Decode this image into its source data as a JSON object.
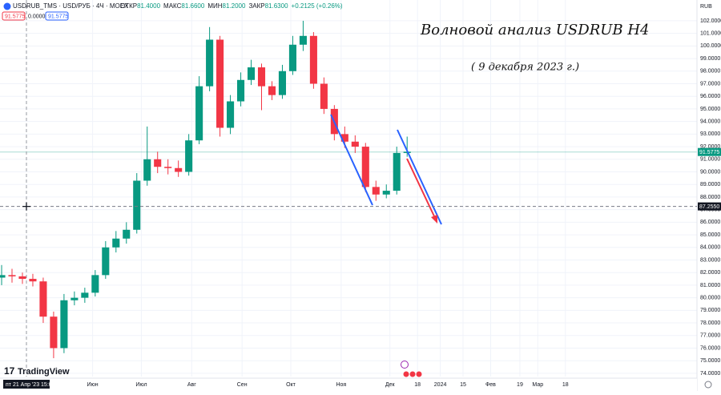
{
  "chart_data": {
    "type": "candlestick",
    "title": "Волновой анализ USDRUB H4",
    "subtitle": "( 9 декабря 2023 г.)",
    "symbol": "USDRUB_TMS · USD/РУБ · 4Ч · MOEX",
    "ohlc_legend": [
      {
        "label": "ОТКР",
        "value": "81.4000"
      },
      {
        "label": "МАКС",
        "value": "81.6600"
      },
      {
        "label": "МИН",
        "value": "81.2000"
      },
      {
        "label": "ЗАКР",
        "value": "81.6300"
      }
    ],
    "change": "+0.2125 (+0.26%)",
    "order_boxes": [
      "91.5775",
      "0.0000",
      "91.5775"
    ],
    "currency": "RUB",
    "crosshair_time": "пт 21 Апр '23 15:00",
    "brand": "TradingView",
    "up_color": "#089981",
    "down_color": "#f23645",
    "grid": true,
    "x": [
      -15,
      -8.6,
      -2.2,
      4.2,
      10.6,
      17,
      23.4,
      29.8,
      36.2,
      42.6,
      49,
      55.4,
      61.8,
      68.2,
      74.6,
      81,
      87.4,
      93.8,
      100.2,
      106.6,
      113,
      119.4,
      125.8,
      132.2,
      138.6,
      145,
      151.4,
      157.8,
      164.2,
      170.6,
      177,
      183.4,
      189.8,
      196.2,
      202.6,
      209,
      215.4,
      221.8,
      228.2,
      234.6
    ],
    "open": [
      81.6,
      81.8,
      81.7,
      81.5,
      81.3,
      78.5,
      76.0,
      79.8,
      80.0,
      80.4,
      81.8,
      84.0,
      84.7,
      85.4,
      89.3,
      91.0,
      90.4,
      90.3,
      90.0,
      92.5,
      96.8,
      100.5,
      93.5,
      95.6,
      97.3,
      98.3,
      96.8,
      96.1,
      98.0,
      100.1,
      100.8,
      97.0,
      95.0,
      93.0,
      92.4,
      92.0,
      88.8,
      88.2,
      88.5,
      91.5
    ],
    "high": [
      82.6,
      82.3,
      82.0,
      81.9,
      81.6,
      78.9,
      80.3,
      80.5,
      80.8,
      82.2,
      84.5,
      85.3,
      86.0,
      89.9,
      93.6,
      91.6,
      91.0,
      90.9,
      93.0,
      97.6,
      101.5,
      100.8,
      96.1,
      97.9,
      98.9,
      98.6,
      97.2,
      98.5,
      100.8,
      102.0,
      101.1,
      97.5,
      95.3,
      93.6,
      92.9,
      92.3,
      89.3,
      89.0,
      92.0,
      92.8
    ],
    "low": [
      81.0,
      81.2,
      81.1,
      80.9,
      78.0,
      75.2,
      75.6,
      79.4,
      79.6,
      80.1,
      81.5,
      83.6,
      84.3,
      85.1,
      88.9,
      89.9,
      89.8,
      89.6,
      89.7,
      92.2,
      96.4,
      92.8,
      93.0,
      95.2,
      96.9,
      94.9,
      95.7,
      95.8,
      97.7,
      99.6,
      96.6,
      94.6,
      92.5,
      91.9,
      91.5,
      88.4,
      87.7,
      87.9,
      88.2,
      91.2
    ],
    "close": [
      81.8,
      81.7,
      81.5,
      81.3,
      78.5,
      76.0,
      79.8,
      80.0,
      80.4,
      81.8,
      84.0,
      84.7,
      85.4,
      89.3,
      91.0,
      90.4,
      90.3,
      90.0,
      92.5,
      96.8,
      100.5,
      93.5,
      95.6,
      97.3,
      98.3,
      96.8,
      96.1,
      98.0,
      100.1,
      100.8,
      97.0,
      95.0,
      93.0,
      92.4,
      92.0,
      88.8,
      88.2,
      88.5,
      91.5,
      91.6
    ],
    "xlim": [
      -16,
      413
    ],
    "xticks": [
      {
        "value": 41,
        "label": "Июн"
      },
      {
        "value": 71,
        "label": "Июл"
      },
      {
        "value": 102,
        "label": "Авг"
      },
      {
        "value": 133,
        "label": "Сен"
      },
      {
        "value": 163,
        "label": "Окт"
      },
      {
        "value": 194,
        "label": "Ноя"
      },
      {
        "value": 224,
        "label": "Дек"
      },
      {
        "value": 241,
        "label": "18"
      },
      {
        "value": 255,
        "label": "2024"
      },
      {
        "value": 269,
        "label": "15"
      },
      {
        "value": 286,
        "label": "Фев"
      },
      {
        "value": 304,
        "label": "19"
      },
      {
        "value": 315,
        "label": "Мар"
      },
      {
        "value": 332,
        "label": "18"
      }
    ],
    "ylim": [
      73.74,
      103.65
    ],
    "yticks": [
      {
        "value": 74,
        "label": "74.0000"
      },
      {
        "value": 75,
        "label": "75.0000"
      },
      {
        "value": 76,
        "label": "76.0000"
      },
      {
        "value": 77,
        "label": "77.0000"
      },
      {
        "value": 78,
        "label": "78.0000"
      },
      {
        "value": 79,
        "label": "79.0000"
      },
      {
        "value": 80,
        "label": "80.0000"
      },
      {
        "value": 81,
        "label": "81.0000"
      },
      {
        "value": 82,
        "label": "82.0000"
      },
      {
        "value": 83,
        "label": "83.0000"
      },
      {
        "value": 84,
        "label": "84.0000"
      },
      {
        "value": 85,
        "label": "85.0000"
      },
      {
        "value": 86,
        "label": "86.0000"
      },
      {
        "value": 87,
        "label": "87.0000"
      },
      {
        "value": 88,
        "label": "88.0000"
      },
      {
        "value": 89,
        "label": "89.0000"
      },
      {
        "value": 90,
        "label": "90.0000"
      },
      {
        "value": 91,
        "label": "91.0000"
      },
      {
        "value": 92,
        "label": "92.0000"
      },
      {
        "value": 93,
        "label": "93.0000"
      },
      {
        "value": 94,
        "label": "94.0000"
      },
      {
        "value": 95,
        "label": "95.0000"
      },
      {
        "value": 96,
        "label": "96.0000"
      },
      {
        "value": 97,
        "label": "97.0000"
      },
      {
        "value": 98,
        "label": "98.0000"
      },
      {
        "value": 99,
        "label": "99.0000"
      },
      {
        "value": 100,
        "label": "100.0000"
      },
      {
        "value": 101,
        "label": "101.0000"
      },
      {
        "value": 102,
        "label": "102.0000"
      }
    ],
    "last_price": 91.5775,
    "crosshair_price": {
      "value": 87.255,
      "label": "87.2550"
    }
  }
}
